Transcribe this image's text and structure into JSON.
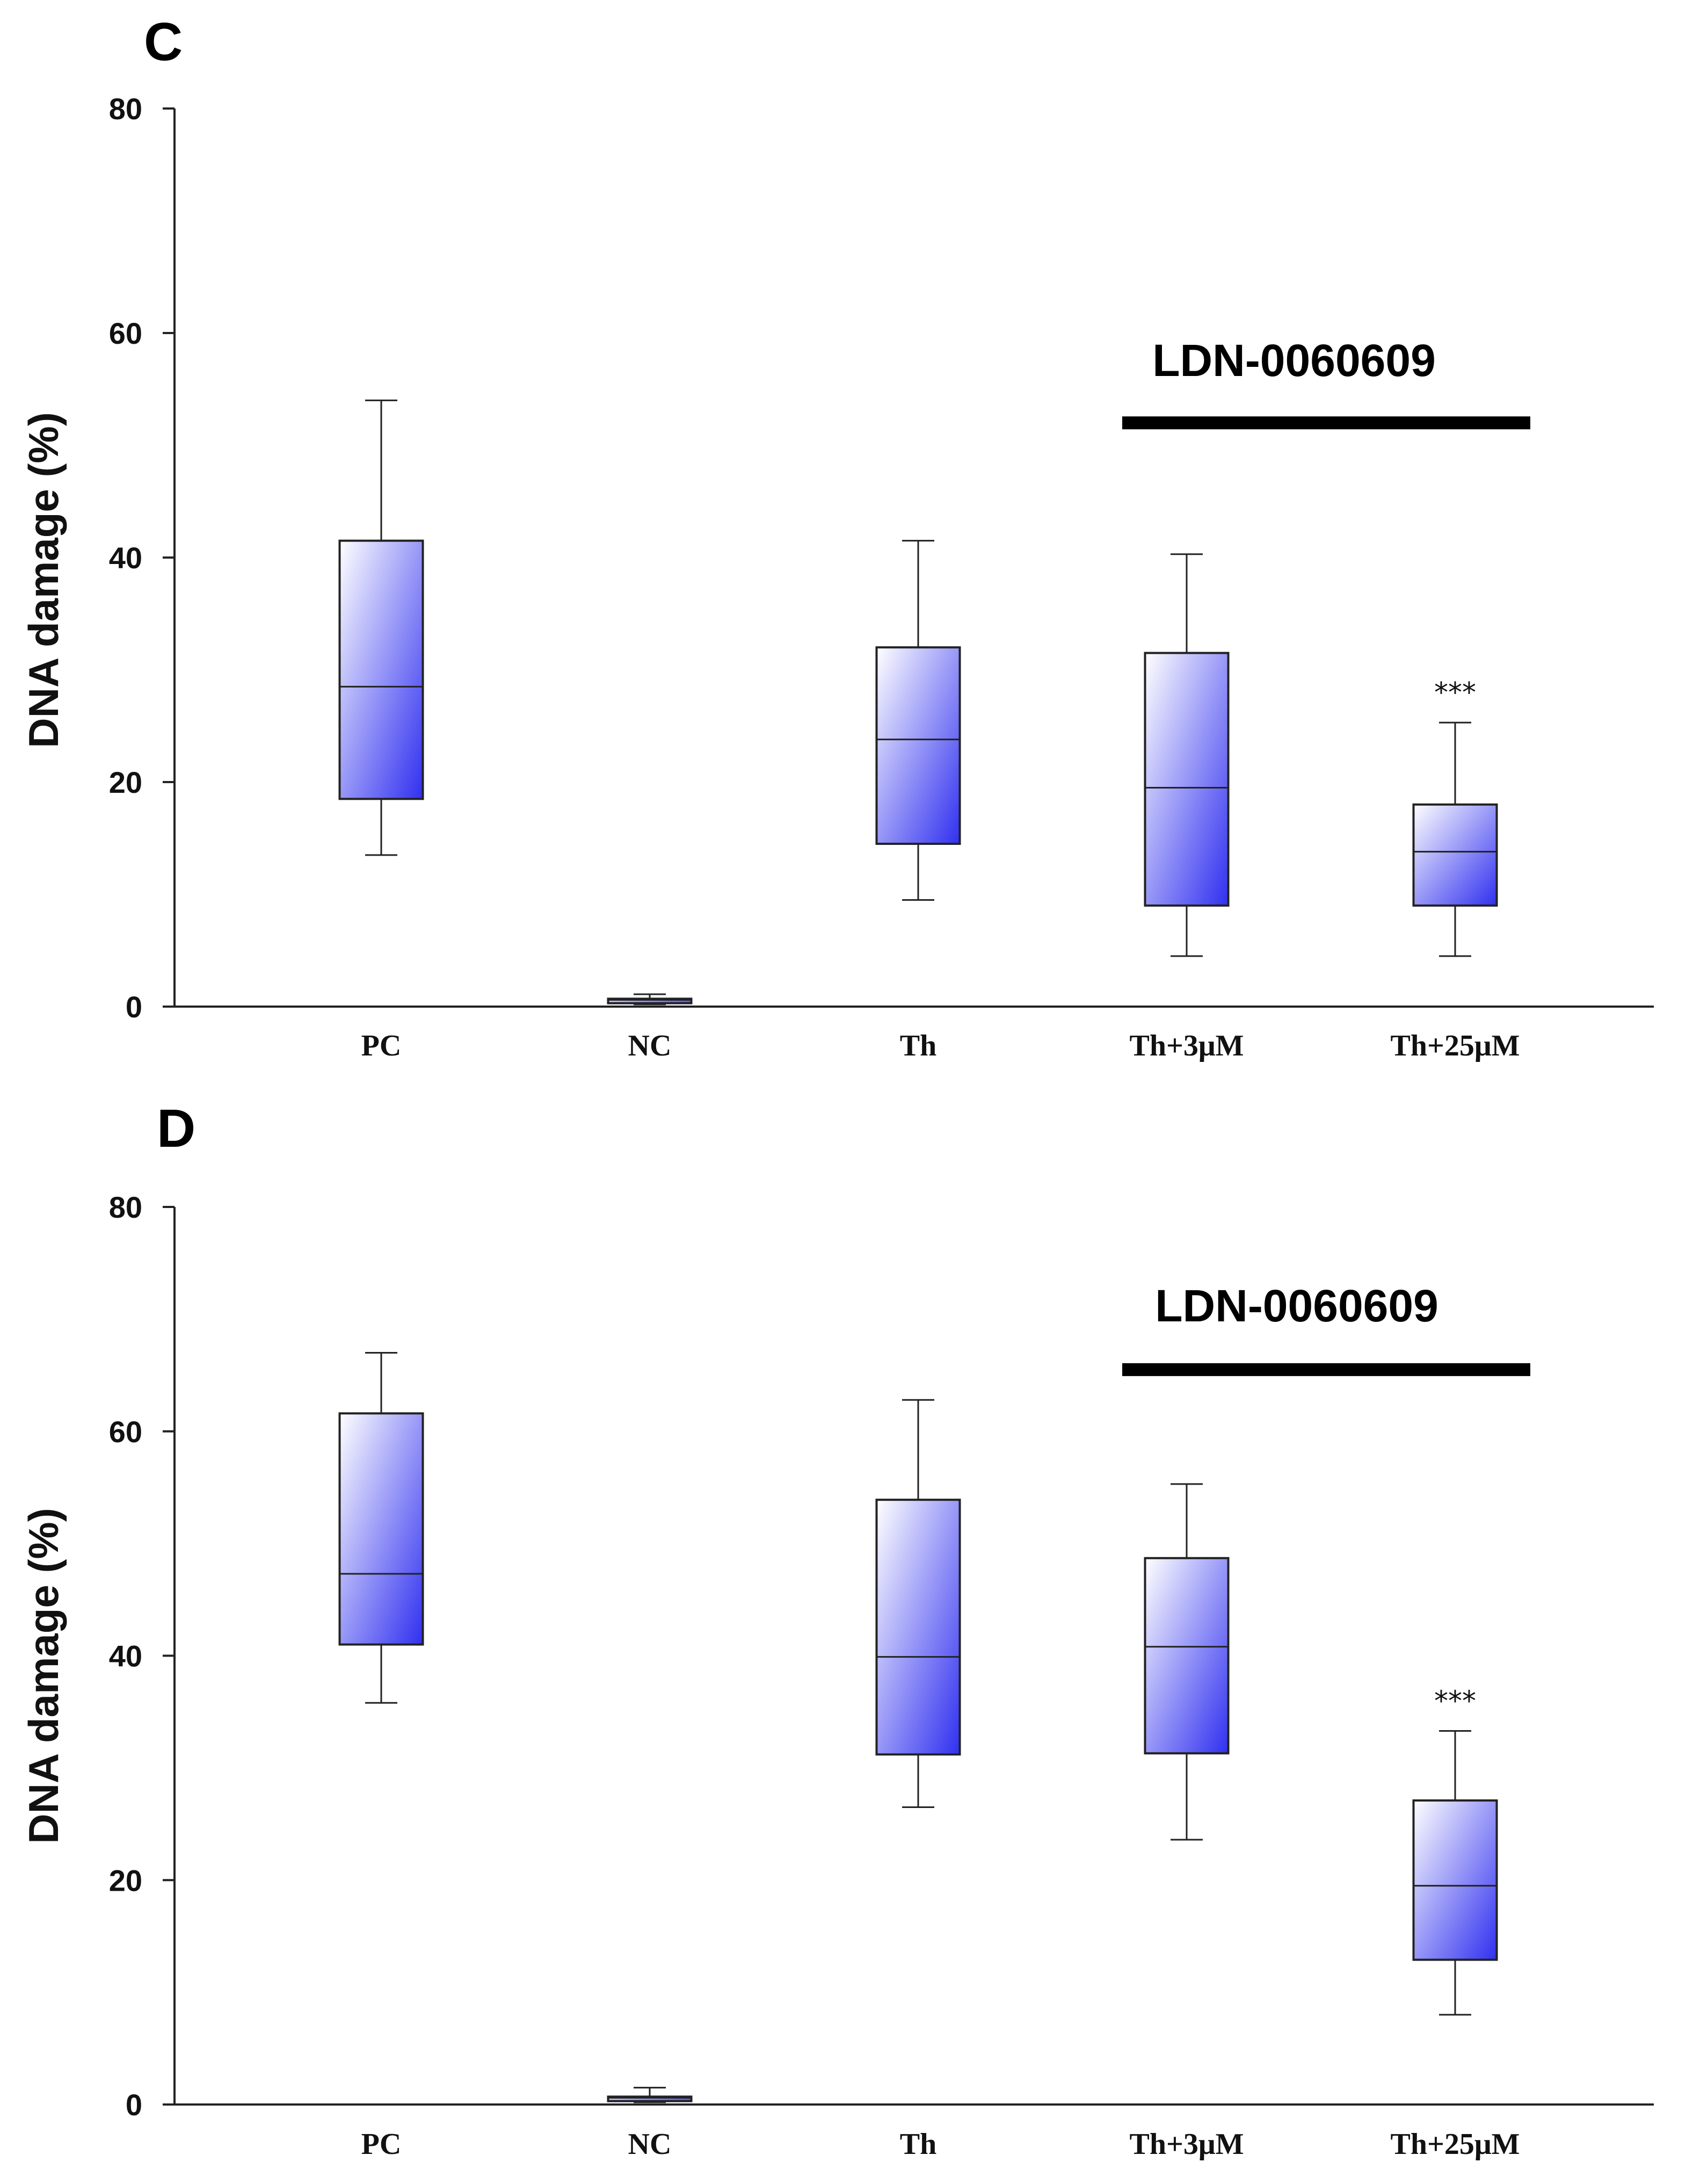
{
  "chart_data": [
    {
      "panel": "C",
      "type": "box",
      "title": "",
      "xlabel": "",
      "ylabel": "DNA damage (%)",
      "ylim": [
        0,
        80
      ],
      "yticks": [
        0,
        20,
        40,
        60,
        80
      ],
      "categories": [
        "PC",
        "NC",
        "Th",
        "Th+3μM",
        "Th+25μM"
      ],
      "boxes": [
        {
          "min": 13.5,
          "q1": 18.5,
          "median": 28.5,
          "q3": 41.5,
          "max": 54
        },
        {
          "min": 0.2,
          "q1": 0.3,
          "median": 0.6,
          "q3": 0.7,
          "max": 1.1
        },
        {
          "min": 9.5,
          "q1": 14.5,
          "median": 23.8,
          "q3": 32,
          "max": 41.5
        },
        {
          "min": 4.5,
          "q1": 9,
          "median": 19.5,
          "q3": 31.5,
          "max": 40.3
        },
        {
          "min": 4.5,
          "q1": 9,
          "median": 13.8,
          "q3": 18,
          "max": 25.3
        }
      ],
      "significance": [
        {
          "category": "Th+25μM",
          "label": "***"
        }
      ],
      "group_bar": {
        "label": "LDN-0060609",
        "from_category": "Th+3μM",
        "to_category": "Th+25μM",
        "y": 52
      }
    },
    {
      "panel": "D",
      "type": "box",
      "title": "",
      "xlabel": "",
      "ylabel": "DNA damage (%)",
      "ylim": [
        0,
        80
      ],
      "yticks": [
        0,
        20,
        40,
        60,
        80
      ],
      "categories": [
        "PC",
        "NC",
        "Th",
        "Th+3μM",
        "Th+25μM"
      ],
      "boxes": [
        {
          "min": 35.8,
          "q1": 41,
          "median": 47.3,
          "q3": 61.6,
          "max": 67
        },
        {
          "min": 0.2,
          "q1": 0.3,
          "median": 0.6,
          "q3": 0.7,
          "max": 1.5
        },
        {
          "min": 26.5,
          "q1": 31.2,
          "median": 39.9,
          "q3": 53.9,
          "max": 62.8
        },
        {
          "min": 23.6,
          "q1": 31.3,
          "median": 40.8,
          "q3": 48.7,
          "max": 55.3
        },
        {
          "min": 8,
          "q1": 12.9,
          "median": 19.5,
          "q3": 27.1,
          "max": 33.3
        }
      ],
      "significance": [
        {
          "category": "Th+25μM",
          "label": "***"
        }
      ],
      "group_bar": {
        "label": "LDN-0060609",
        "from_category": "Th+3μM",
        "to_category": "Th+25μM",
        "y": 65.5
      }
    }
  ]
}
